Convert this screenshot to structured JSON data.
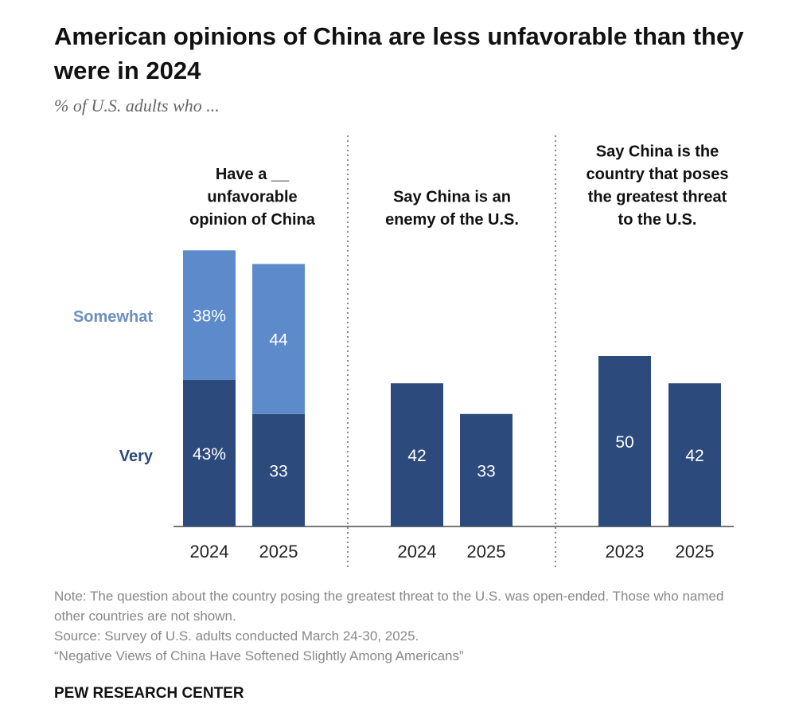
{
  "title": "American opinions of China are less unfavorable than they were in 2024",
  "subtitle": "% of U.S. adults who ...",
  "chart_data": {
    "type": "bar",
    "stacked": true,
    "colors": {
      "very": "#2c4a7c",
      "somewhat": "#5d8acb",
      "somewhat_label": "#6a8fc0",
      "axis": "#777777"
    },
    "series_labels": {
      "somewhat": "Somewhat",
      "very": "Very"
    },
    "groups": [
      {
        "title": [
          "Have a __",
          "unfavorable",
          "opinion of China"
        ],
        "bars": [
          {
            "category": "2024",
            "very": 43,
            "somewhat": 38,
            "very_label": "43%",
            "somewhat_label": "38%"
          },
          {
            "category": "2025",
            "very": 33,
            "somewhat": 44,
            "very_label": "33",
            "somewhat_label": "44"
          }
        ]
      },
      {
        "title": [
          "Say China is an",
          "enemy of the U.S."
        ],
        "bars": [
          {
            "category": "2024",
            "very": 42,
            "very_label": "42"
          },
          {
            "category": "2025",
            "very": 33,
            "very_label": "33"
          }
        ]
      },
      {
        "title": [
          "Say China is the",
          "country that poses",
          "the greatest threat",
          "to the U.S."
        ],
        "bars": [
          {
            "category": "2023",
            "very": 50,
            "very_label": "50"
          },
          {
            "category": "2025",
            "very": 42,
            "very_label": "42"
          }
        ]
      }
    ],
    "ylim": [
      0,
      85
    ],
    "grid": false
  },
  "notes": [
    "Note: The question about the country posing the greatest threat to the U.S. was open-ended. Those who named other countries are not shown.",
    "Source: Survey of U.S. adults conducted March 24-30, 2025.",
    "“Negative Views of China Have Softened Slightly Among Americans”"
  ],
  "brand": "PEW RESEARCH CENTER"
}
